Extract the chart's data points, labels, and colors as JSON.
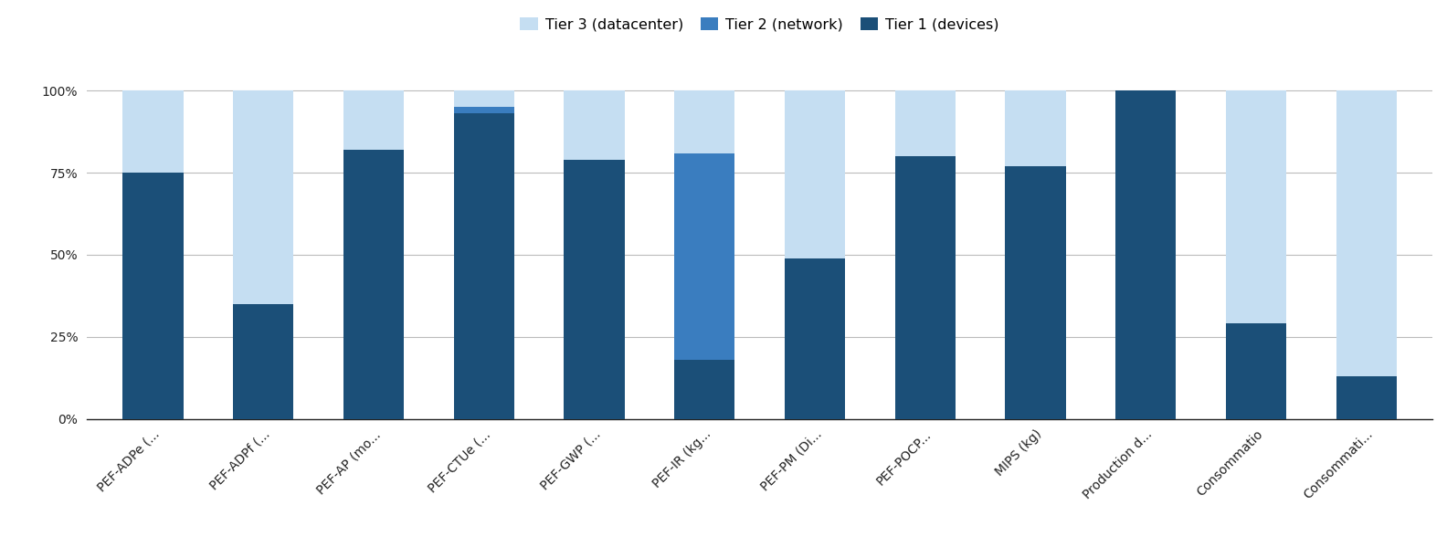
{
  "categories": [
    "PEF-ADPe (...",
    "PEF-ADPf (...",
    "PEF-AP (mo...",
    "PEF-CTUe (...",
    "PEF-GWP (...",
    "PEF-IR (kg...",
    "PEF-PM (Di...",
    "PEF-POCP...",
    "MIPS (kg)",
    "Production d...",
    "Consommatio",
    "Consommati..."
  ],
  "tier1": [
    75,
    35,
    82,
    93,
    79,
    18,
    49,
    80,
    77,
    100,
    29,
    13
  ],
  "tier2": [
    0,
    0,
    0,
    2,
    0,
    63,
    0,
    0,
    0,
    0,
    0,
    0
  ],
  "tier3": [
    25,
    65,
    18,
    5,
    21,
    19,
    51,
    20,
    23,
    0,
    71,
    87
  ],
  "color_tier1": "#1b4f78",
  "color_tier2": "#3a7dbf",
  "color_tier3": "#c5def2",
  "legend_labels": [
    "Tier 3 (datacenter)",
    "Tier 2 (network)",
    "Tier 1 (devices)"
  ],
  "yticks": [
    0,
    25,
    50,
    75,
    100
  ],
  "ytick_labels": [
    "0%",
    "25%",
    "50%",
    "75%",
    "100%"
  ],
  "background_color": "#ffffff",
  "bar_width": 0.55,
  "ylim": [
    0,
    108
  ]
}
